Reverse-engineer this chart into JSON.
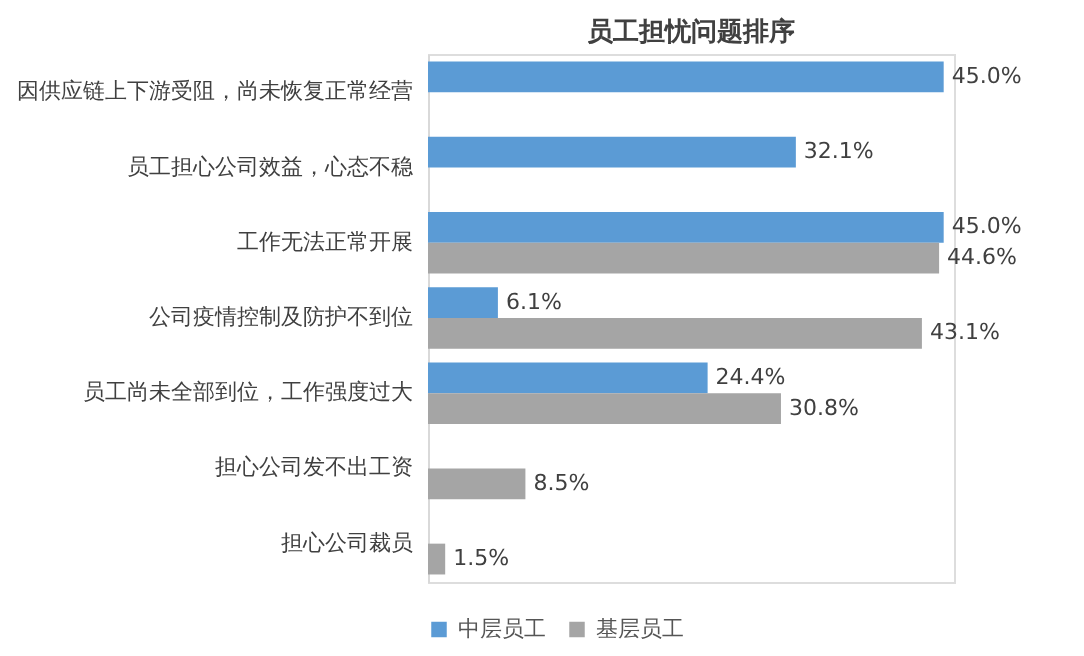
{
  "chart_data": {
    "type": "bar",
    "orientation": "horizontal",
    "title": "员工担忧问题排序",
    "categories": [
      "因供应链上下游受阻，尚未恢复正常经营",
      "员工担心公司效益，心态不稳",
      "工作无法正常开展",
      "公司疫情控制及防护不到位",
      "员工尚未全部到位，工作强度过大",
      "担心公司发不出工资",
      "担心公司裁员"
    ],
    "series": [
      {
        "name": "中层员工",
        "color": "#5b9bd5",
        "values": [
          45.0,
          32.1,
          45.0,
          6.1,
          24.4,
          null,
          null
        ],
        "value_labels": [
          "45.0%",
          "32.1%",
          "45.0%",
          "6.1%",
          "24.4%",
          null,
          null
        ]
      },
      {
        "name": "基层员工",
        "color": "#a5a5a5",
        "values": [
          null,
          null,
          44.6,
          43.1,
          30.8,
          8.5,
          1.5
        ],
        "value_labels": [
          null,
          null,
          "44.6%",
          "43.1%",
          "30.8%",
          "8.5%",
          "1.5%"
        ]
      }
    ],
    "legend": "bottom",
    "grid": false
  }
}
